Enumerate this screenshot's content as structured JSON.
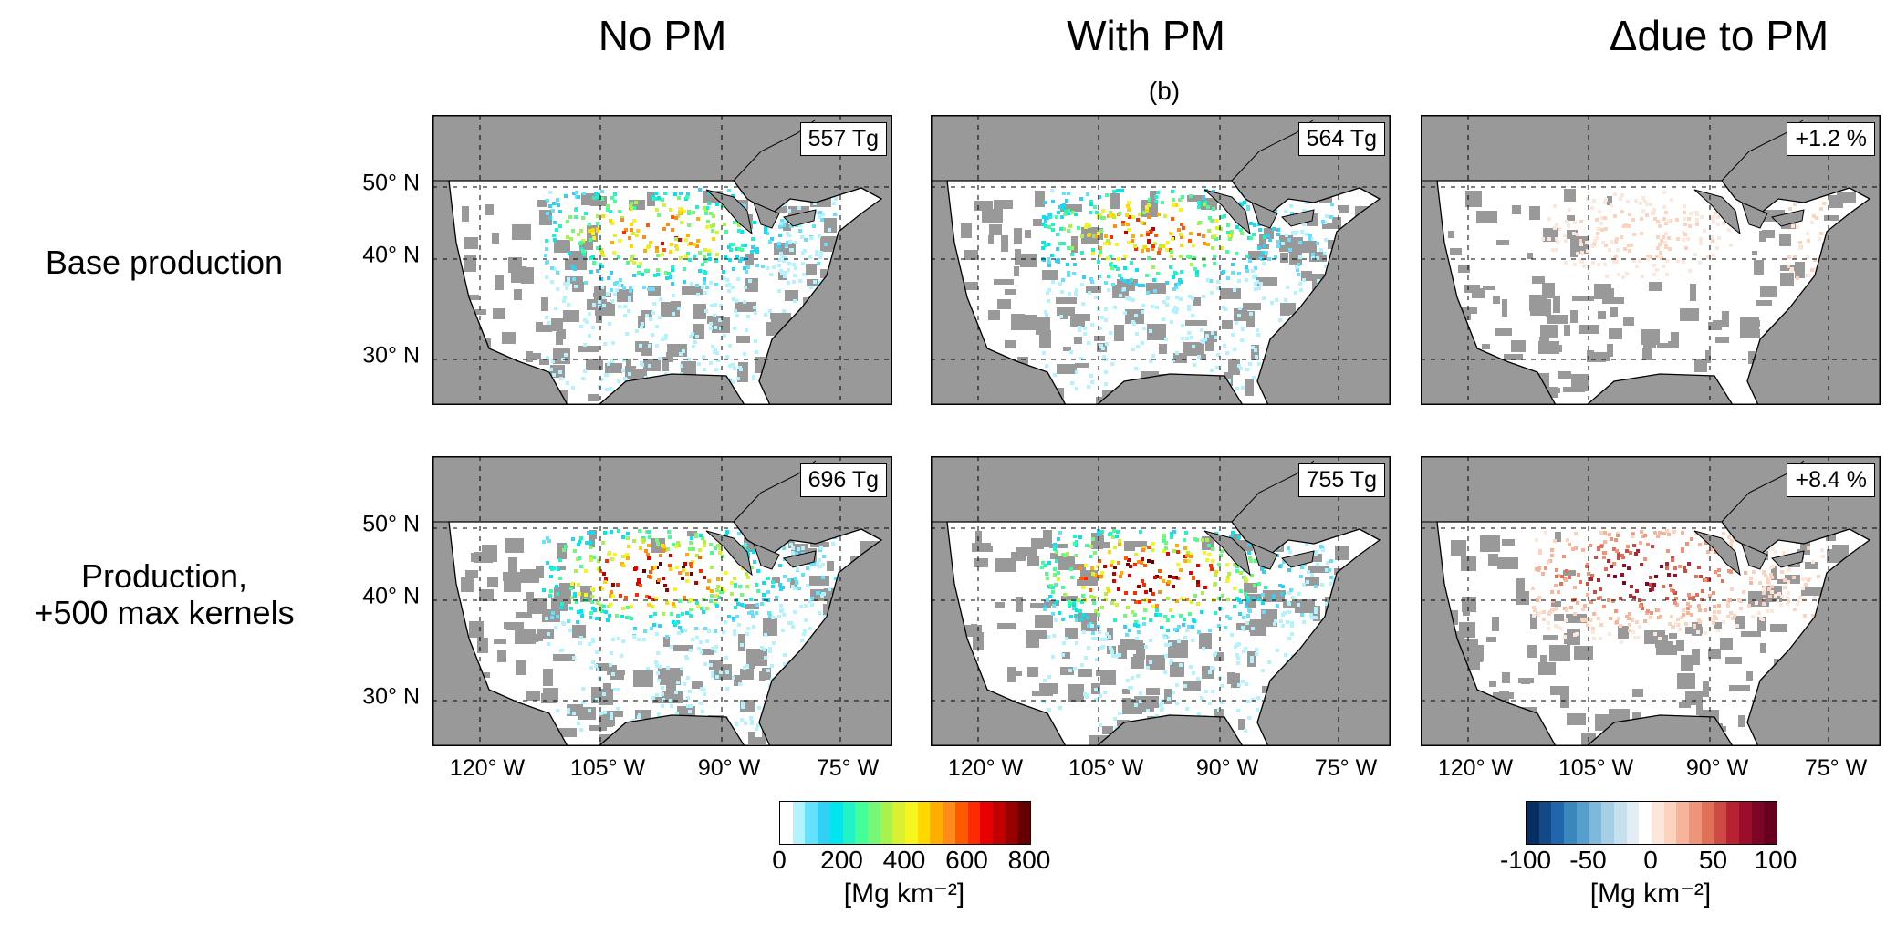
{
  "column_titles": [
    "No PM",
    "With PM",
    "Δdue to PM"
  ],
  "subplot_label": "(b)",
  "row_labels": [
    "Base production",
    "Production,\n+500 max kernels"
  ],
  "lat_labels": [
    "50° N",
    "40° N",
    "30° N"
  ],
  "lon_labels": [
    "120° W",
    "105° W",
    "90° W",
    "75° W"
  ],
  "panels": [
    {
      "total": "557 Tg",
      "kind": "abs",
      "intensity": 0.75
    },
    {
      "total": "564 Tg",
      "kind": "abs",
      "intensity": 0.8
    },
    {
      "total": "+1.2 %",
      "kind": "diff",
      "intensity": 0.15
    },
    {
      "total": "696 Tg",
      "kind": "abs",
      "intensity": 0.95
    },
    {
      "total": "755 Tg",
      "kind": "abs",
      "intensity": 1.0
    },
    {
      "total": "+8.4 %",
      "kind": "diff",
      "intensity": 0.8
    }
  ],
  "colorbars": [
    {
      "ticks": [
        "0",
        "200",
        "400",
        "600",
        "800"
      ],
      "label": "[Mg km⁻²]",
      "colors": [
        "#ffffff",
        "#b2f3ff",
        "#66e0ff",
        "#33d0f5",
        "#00e5f0",
        "#22f2c8",
        "#44ff99",
        "#77f777",
        "#a8f24c",
        "#d8f233",
        "#f5f520",
        "#ffd800",
        "#ffae00",
        "#ff8c1a",
        "#ff5a00",
        "#ff2a00",
        "#e60000",
        "#c20000",
        "#990000",
        "#660000"
      ]
    },
    {
      "ticks": [
        "-100",
        "-50",
        "0",
        "50",
        "100"
      ],
      "label": "[Mg km⁻²]",
      "colors": [
        "#053061",
        "#134a86",
        "#2166ac",
        "#3a87bd",
        "#569fcd",
        "#7fb8da",
        "#a6cfe4",
        "#c7e1ec",
        "#e3eef4",
        "#ffffff",
        "#fbe7dc",
        "#fcd3bf",
        "#f7b49a",
        "#ee9479",
        "#e07058",
        "#ce4a44",
        "#b72230",
        "#9a0e2a",
        "#7d0626",
        "#67001f"
      ]
    }
  ]
}
